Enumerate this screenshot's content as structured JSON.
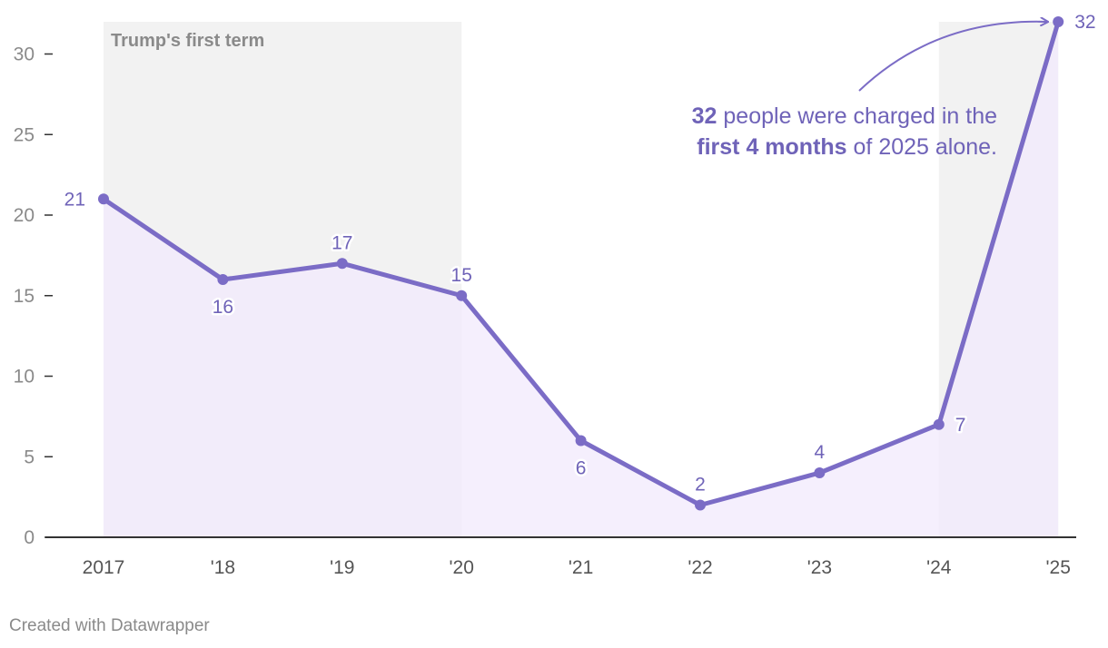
{
  "chart_data": {
    "type": "line",
    "title": "",
    "xlabel": "",
    "ylabel": "",
    "x": [
      "2017",
      "'18",
      "'19",
      "'20",
      "'21",
      "'22",
      "'23",
      "'24",
      "'25"
    ],
    "series": [
      {
        "values": [
          21,
          16,
          17,
          15,
          6,
          2,
          4,
          7,
          32
        ]
      }
    ],
    "ylim": [
      0,
      32
    ],
    "yticks": [
      0,
      5,
      10,
      15,
      20,
      25,
      30
    ],
    "grid": false,
    "area_fill": true,
    "shaded_ranges": [
      {
        "label": "Trump's first term",
        "from": "2017",
        "to": "'20"
      },
      {
        "label": "",
        "from": "'24",
        "to": "'25"
      }
    ],
    "annotation": {
      "line1": [
        "32",
        " people were charged in the"
      ],
      "line2": [
        "first 4 months",
        " of 2025 alone."
      ],
      "bold_parts": [
        "32",
        "first 4 months"
      ],
      "points_to": "'25"
    },
    "colors": {
      "line": "#7b6cc6",
      "area": "#f1eafc",
      "shade": "#f2f2f2",
      "text_accent": "#6f63b8"
    }
  },
  "footer": {
    "credit": "Created with Datawrapper"
  }
}
